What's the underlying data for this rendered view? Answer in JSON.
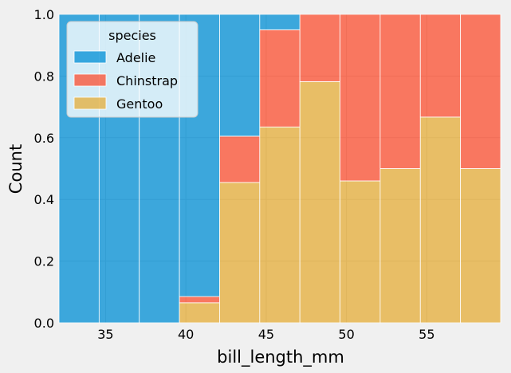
{
  "chart_data": {
    "type": "bar",
    "subtype": "stacked-fill-histogram",
    "xlabel": "bill_length_mm",
    "ylabel": "Count",
    "xlim": [
      32.1,
      59.6
    ],
    "ylim": [
      0,
      1.0
    ],
    "xticks": [
      35,
      40,
      45,
      50,
      55
    ],
    "xtick_labels": [
      "35",
      "40",
      "45",
      "50",
      "55"
    ],
    "yticks": [
      0.0,
      0.2,
      0.4,
      0.6,
      0.8,
      1.0
    ],
    "ytick_labels": [
      "0.0",
      "0.2",
      "0.4",
      "0.6",
      "0.8",
      "1.0"
    ],
    "grid": true,
    "bins": [
      [
        32.1,
        34.6
      ],
      [
        34.6,
        37.1
      ],
      [
        37.1,
        39.6
      ],
      [
        39.6,
        42.1
      ],
      [
        42.1,
        44.6
      ],
      [
        44.6,
        47.1
      ],
      [
        47.1,
        49.6
      ],
      [
        49.6,
        52.1
      ],
      [
        52.1,
        54.6
      ],
      [
        54.6,
        57.1
      ],
      [
        57.1,
        59.6
      ]
    ],
    "series": [
      {
        "name": "Gentoo",
        "color": "#e5ae38",
        "values": [
          0.0,
          0.0,
          0.0,
          0.065,
          0.455,
          0.635,
          0.782,
          0.46,
          0.5,
          0.667,
          0.5
        ]
      },
      {
        "name": "Chinstrap",
        "color": "#fc4f30",
        "values": [
          0.0,
          0.0,
          0.0,
          0.02,
          0.15,
          0.315,
          0.218,
          0.54,
          0.5,
          0.333,
          0.5
        ]
      },
      {
        "name": "Adelie",
        "color": "#008fd5",
        "values": [
          1.0,
          1.0,
          1.0,
          0.915,
          0.395,
          0.05,
          0.0,
          0.0,
          0.0,
          0.0,
          0.0
        ]
      }
    ],
    "legend": {
      "title": "species",
      "position": "top-left",
      "entries": [
        {
          "label": "Adelie",
          "color": "#008fd5"
        },
        {
          "label": "Chinstrap",
          "color": "#fc4f30"
        },
        {
          "label": "Gentoo",
          "color": "#e5ae38"
        }
      ]
    },
    "colors": {
      "background": "#f0f0f0",
      "grid": "#cbcbcb"
    }
  }
}
